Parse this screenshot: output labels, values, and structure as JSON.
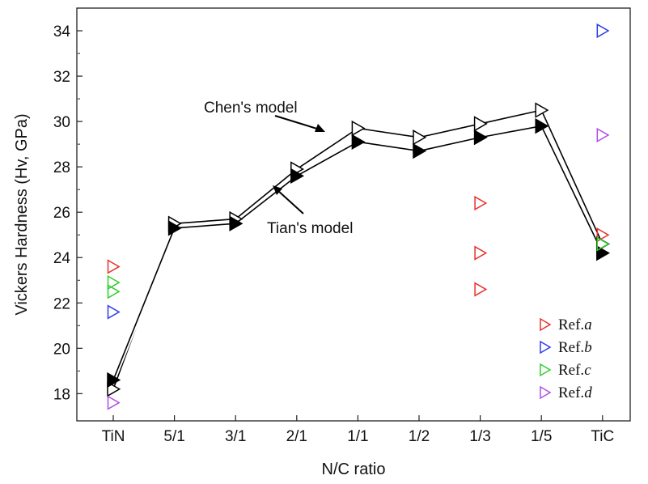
{
  "chart_data": {
    "type": "line",
    "xlabel": "N/C ratio",
    "ylabel": "Vickers Hardness (Hv, GPa)",
    "categories": [
      "TiN",
      "5/1",
      "3/1",
      "2/1",
      "1/1",
      "1/2",
      "1/3",
      "1/5",
      "TiC"
    ],
    "ylim": [
      16.8,
      35
    ],
    "yticks": [
      18,
      20,
      22,
      24,
      26,
      28,
      30,
      32,
      34
    ],
    "grid": false,
    "legend_position": "bottom-right",
    "series": [
      {
        "name": "Chen's model",
        "marker": "open-right-triangle",
        "color": "#000000",
        "values": [
          18.2,
          25.5,
          25.7,
          27.9,
          29.7,
          29.3,
          29.9,
          30.5,
          24.6
        ]
      },
      {
        "name": "Tian's model",
        "marker": "filled-right-triangle",
        "color": "#000000",
        "values": [
          18.6,
          25.3,
          25.5,
          27.6,
          29.1,
          28.7,
          29.3,
          29.8,
          24.2
        ]
      }
    ],
    "reference_points": [
      {
        "name": "Ref.",
        "suffix": "a",
        "color": "#e8302a",
        "points": [
          {
            "x": "TiN",
            "y": 23.6
          },
          {
            "x": "1/3",
            "y": 26.4
          },
          {
            "x": "1/3",
            "y": 24.2
          },
          {
            "x": "1/3",
            "y": 22.6
          },
          {
            "x": "TiC",
            "y": 25.0
          }
        ]
      },
      {
        "name": "Ref.",
        "suffix": "b",
        "color": "#2a3ee8",
        "points": [
          {
            "x": "TiN",
            "y": 21.6
          },
          {
            "x": "TiC",
            "y": 34.0
          }
        ]
      },
      {
        "name": "Ref.",
        "suffix": "c",
        "color": "#2fcf2f",
        "points": [
          {
            "x": "TiN",
            "y": 22.9
          },
          {
            "x": "TiN",
            "y": 22.5
          },
          {
            "x": "TiC",
            "y": 24.6
          }
        ]
      },
      {
        "name": "Ref.",
        "suffix": "d",
        "color": "#b04ce8",
        "points": [
          {
            "x": "TiN",
            "y": 17.6
          },
          {
            "x": "TiC",
            "y": 29.4
          }
        ]
      }
    ],
    "annotations": [
      {
        "text": "Chen's model"
      },
      {
        "text": "Tian's model"
      }
    ]
  }
}
